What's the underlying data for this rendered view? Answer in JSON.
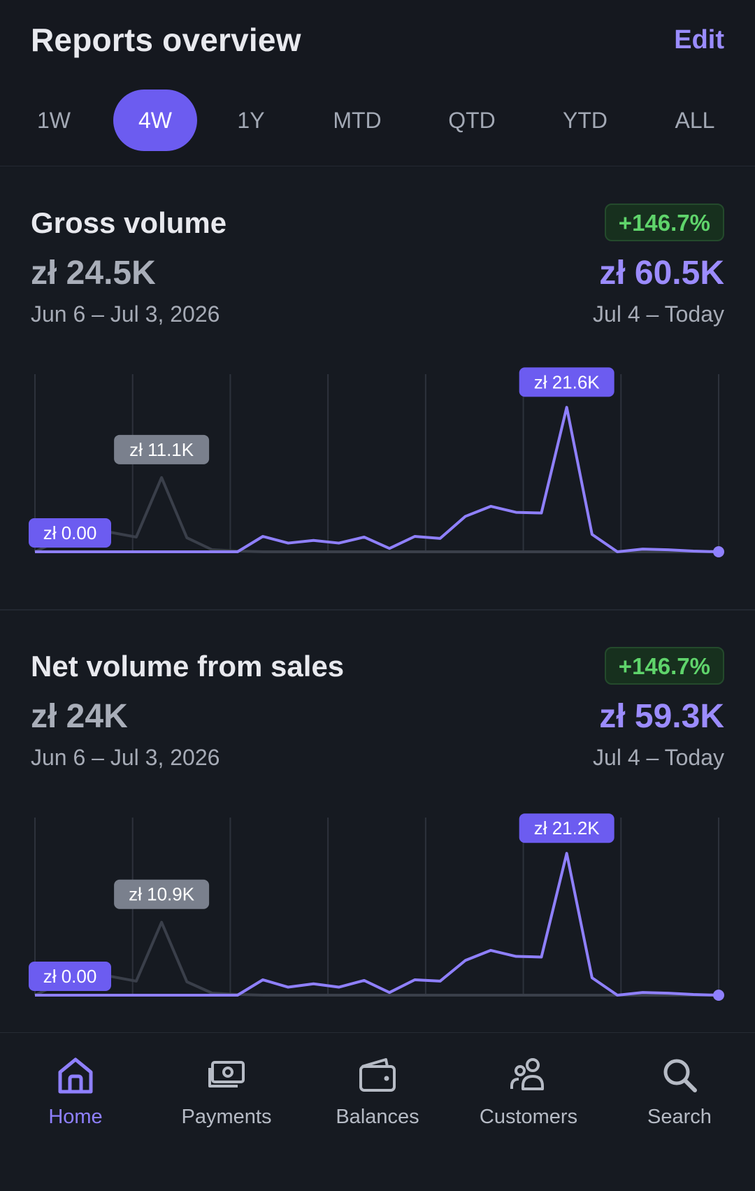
{
  "header": {
    "title": "Reports overview",
    "edit_label": "Edit"
  },
  "tabs": [
    {
      "label": "1W",
      "active": false
    },
    {
      "label": "4W",
      "active": true
    },
    {
      "label": "1Y",
      "active": false
    },
    {
      "label": "MTD",
      "active": false
    },
    {
      "label": "QTD",
      "active": false
    },
    {
      "label": "YTD",
      "active": false
    },
    {
      "label": "ALL",
      "active": false
    }
  ],
  "colors": {
    "accent": "#6c5cf0",
    "current_line": "#8f80ff",
    "previous_line": "#3a3f4a",
    "badge_text": "#5fd46b",
    "background": "#15181f"
  },
  "cards": [
    {
      "title": "Gross volume",
      "change_badge": "+146.7%",
      "previous_total": "zł 24.5K",
      "current_total": "zł 60.5K",
      "previous_range": "Jun 6 – Jul 3, 2026",
      "current_range": "Jul 4 – Today",
      "start_label": "zł 0.00",
      "previous_peak_label": "zł 11.1K",
      "current_peak_label": "zł 21.6K"
    },
    {
      "title": "Net volume from sales",
      "change_badge": "+146.7%",
      "previous_total": "zł 24K",
      "current_total": "zł 59.3K",
      "previous_range": "Jun 6 – Jul 3, 2026",
      "current_range": "Jul 4 – Today",
      "start_label": "zł 0.00",
      "previous_peak_label": "zł 10.9K",
      "current_peak_label": "zł 21.2K"
    }
  ],
  "chart_data": [
    {
      "type": "line",
      "x": [
        1,
        2,
        3,
        4,
        5,
        6,
        7,
        8,
        9,
        10,
        11,
        12,
        13,
        14,
        15,
        16,
        17,
        18,
        19,
        20,
        21,
        22,
        23,
        24,
        25,
        26,
        27,
        28
      ],
      "ylim": [
        0,
        23000
      ],
      "grid": true,
      "series": [
        {
          "name": "Jun 6 – Jul 3, 2026",
          "color": "#3a3f4a",
          "values": [
            0,
            1800,
            2200,
            2900,
            2200,
            11100,
            2100,
            300,
            100,
            0,
            0,
            0,
            0,
            0,
            0,
            0,
            0,
            0,
            0,
            0,
            0,
            0,
            0,
            0,
            0,
            0,
            0,
            0
          ]
        },
        {
          "name": "Jul 4 – Today",
          "color": "#8f80ff",
          "values": [
            0,
            0,
            0,
            0,
            0,
            0,
            0,
            0,
            0,
            2300,
            1300,
            1700,
            1300,
            2200,
            500,
            2300,
            2000,
            5300,
            6800,
            5900,
            5800,
            21600,
            2600,
            0,
            400,
            300,
            100,
            0
          ]
        }
      ],
      "annotations": [
        "zł 0.00",
        "zł 11.1K",
        "zł 21.6K"
      ]
    },
    {
      "type": "line",
      "x": [
        1,
        2,
        3,
        4,
        5,
        6,
        7,
        8,
        9,
        10,
        11,
        12,
        13,
        14,
        15,
        16,
        17,
        18,
        19,
        20,
        21,
        22,
        23,
        24,
        25,
        26,
        27,
        28
      ],
      "ylim": [
        0,
        23000
      ],
      "grid": true,
      "series": [
        {
          "name": "Jun 6 – Jul 3, 2026",
          "color": "#3a3f4a",
          "values": [
            0,
            1800,
            2200,
            2800,
            2100,
            10900,
            2000,
            300,
            100,
            0,
            0,
            0,
            0,
            0,
            0,
            0,
            0,
            0,
            0,
            0,
            0,
            0,
            0,
            0,
            0,
            0,
            0,
            0
          ]
        },
        {
          "name": "Jul 4 – Today",
          "color": "#8f80ff",
          "values": [
            0,
            0,
            0,
            0,
            0,
            0,
            0,
            0,
            0,
            2300,
            1200,
            1700,
            1200,
            2200,
            400,
            2300,
            2100,
            5200,
            6700,
            5800,
            5700,
            21200,
            2600,
            0,
            400,
            300,
            100,
            0
          ]
        }
      ],
      "annotations": [
        "zł 0.00",
        "zł 10.9K",
        "zł 21.2K"
      ]
    }
  ],
  "nav": [
    {
      "label": "Home",
      "icon": "home-icon",
      "active": true
    },
    {
      "label": "Payments",
      "icon": "payments-icon",
      "active": false
    },
    {
      "label": "Balances",
      "icon": "wallet-icon",
      "active": false
    },
    {
      "label": "Customers",
      "icon": "customers-icon",
      "active": false
    },
    {
      "label": "Search",
      "icon": "search-icon",
      "active": false
    }
  ]
}
